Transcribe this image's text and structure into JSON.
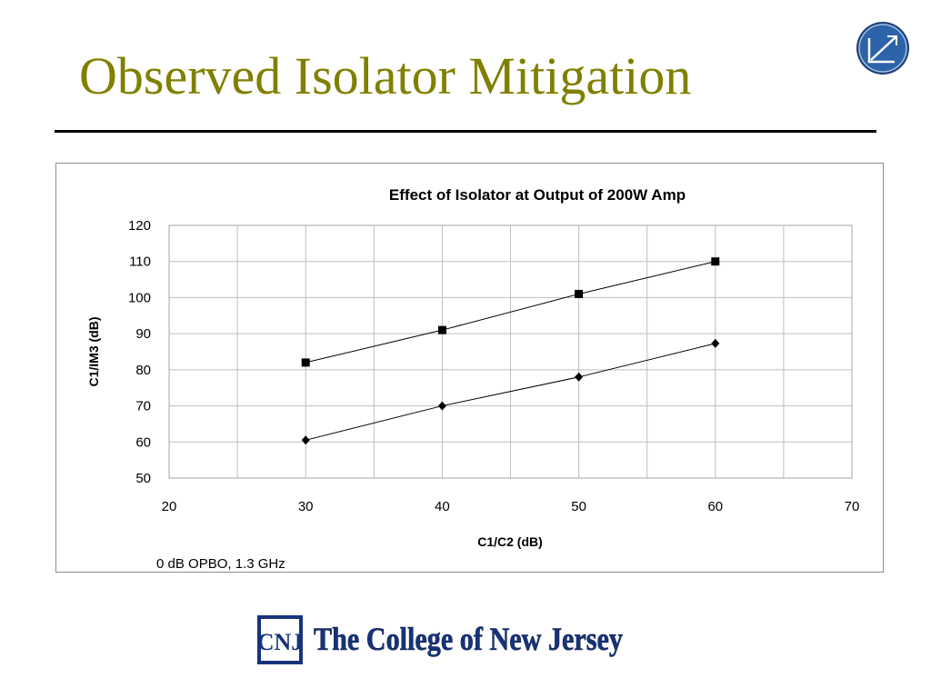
{
  "slide": {
    "title": "Observed Isolator Mitigation",
    "footer_text": "The College of New Jersey",
    "footer_monogram": "CNJ"
  },
  "colors": {
    "title": "#808000",
    "logo_circle": "#2d63a8",
    "footer_text": "#17337a"
  },
  "icons": [
    "corner-logo-icon",
    "tcnj-monogram-icon"
  ],
  "chart_data": {
    "type": "scatter",
    "title": "Effect of Isolator at Output of 200W Amp",
    "xlabel": "C1/C2 (dB)",
    "ylabel": "C1/IM3 (dB)",
    "note": "0 dB OPBO, 1.3 GHz",
    "xlim": [
      20,
      70
    ],
    "ylim": [
      50,
      120
    ],
    "xticks": [
      20,
      30,
      40,
      50,
      60,
      70
    ],
    "yticks": [
      50,
      60,
      70,
      80,
      90,
      100,
      110,
      120
    ],
    "grid": true,
    "series": [
      {
        "marker": "square",
        "x": [
          30,
          40,
          50,
          60
        ],
        "y": [
          82,
          91,
          101,
          110
        ]
      },
      {
        "marker": "diamond",
        "x": [
          30,
          40,
          50,
          60
        ],
        "y": [
          60.5,
          70,
          78,
          87.3
        ]
      }
    ]
  }
}
